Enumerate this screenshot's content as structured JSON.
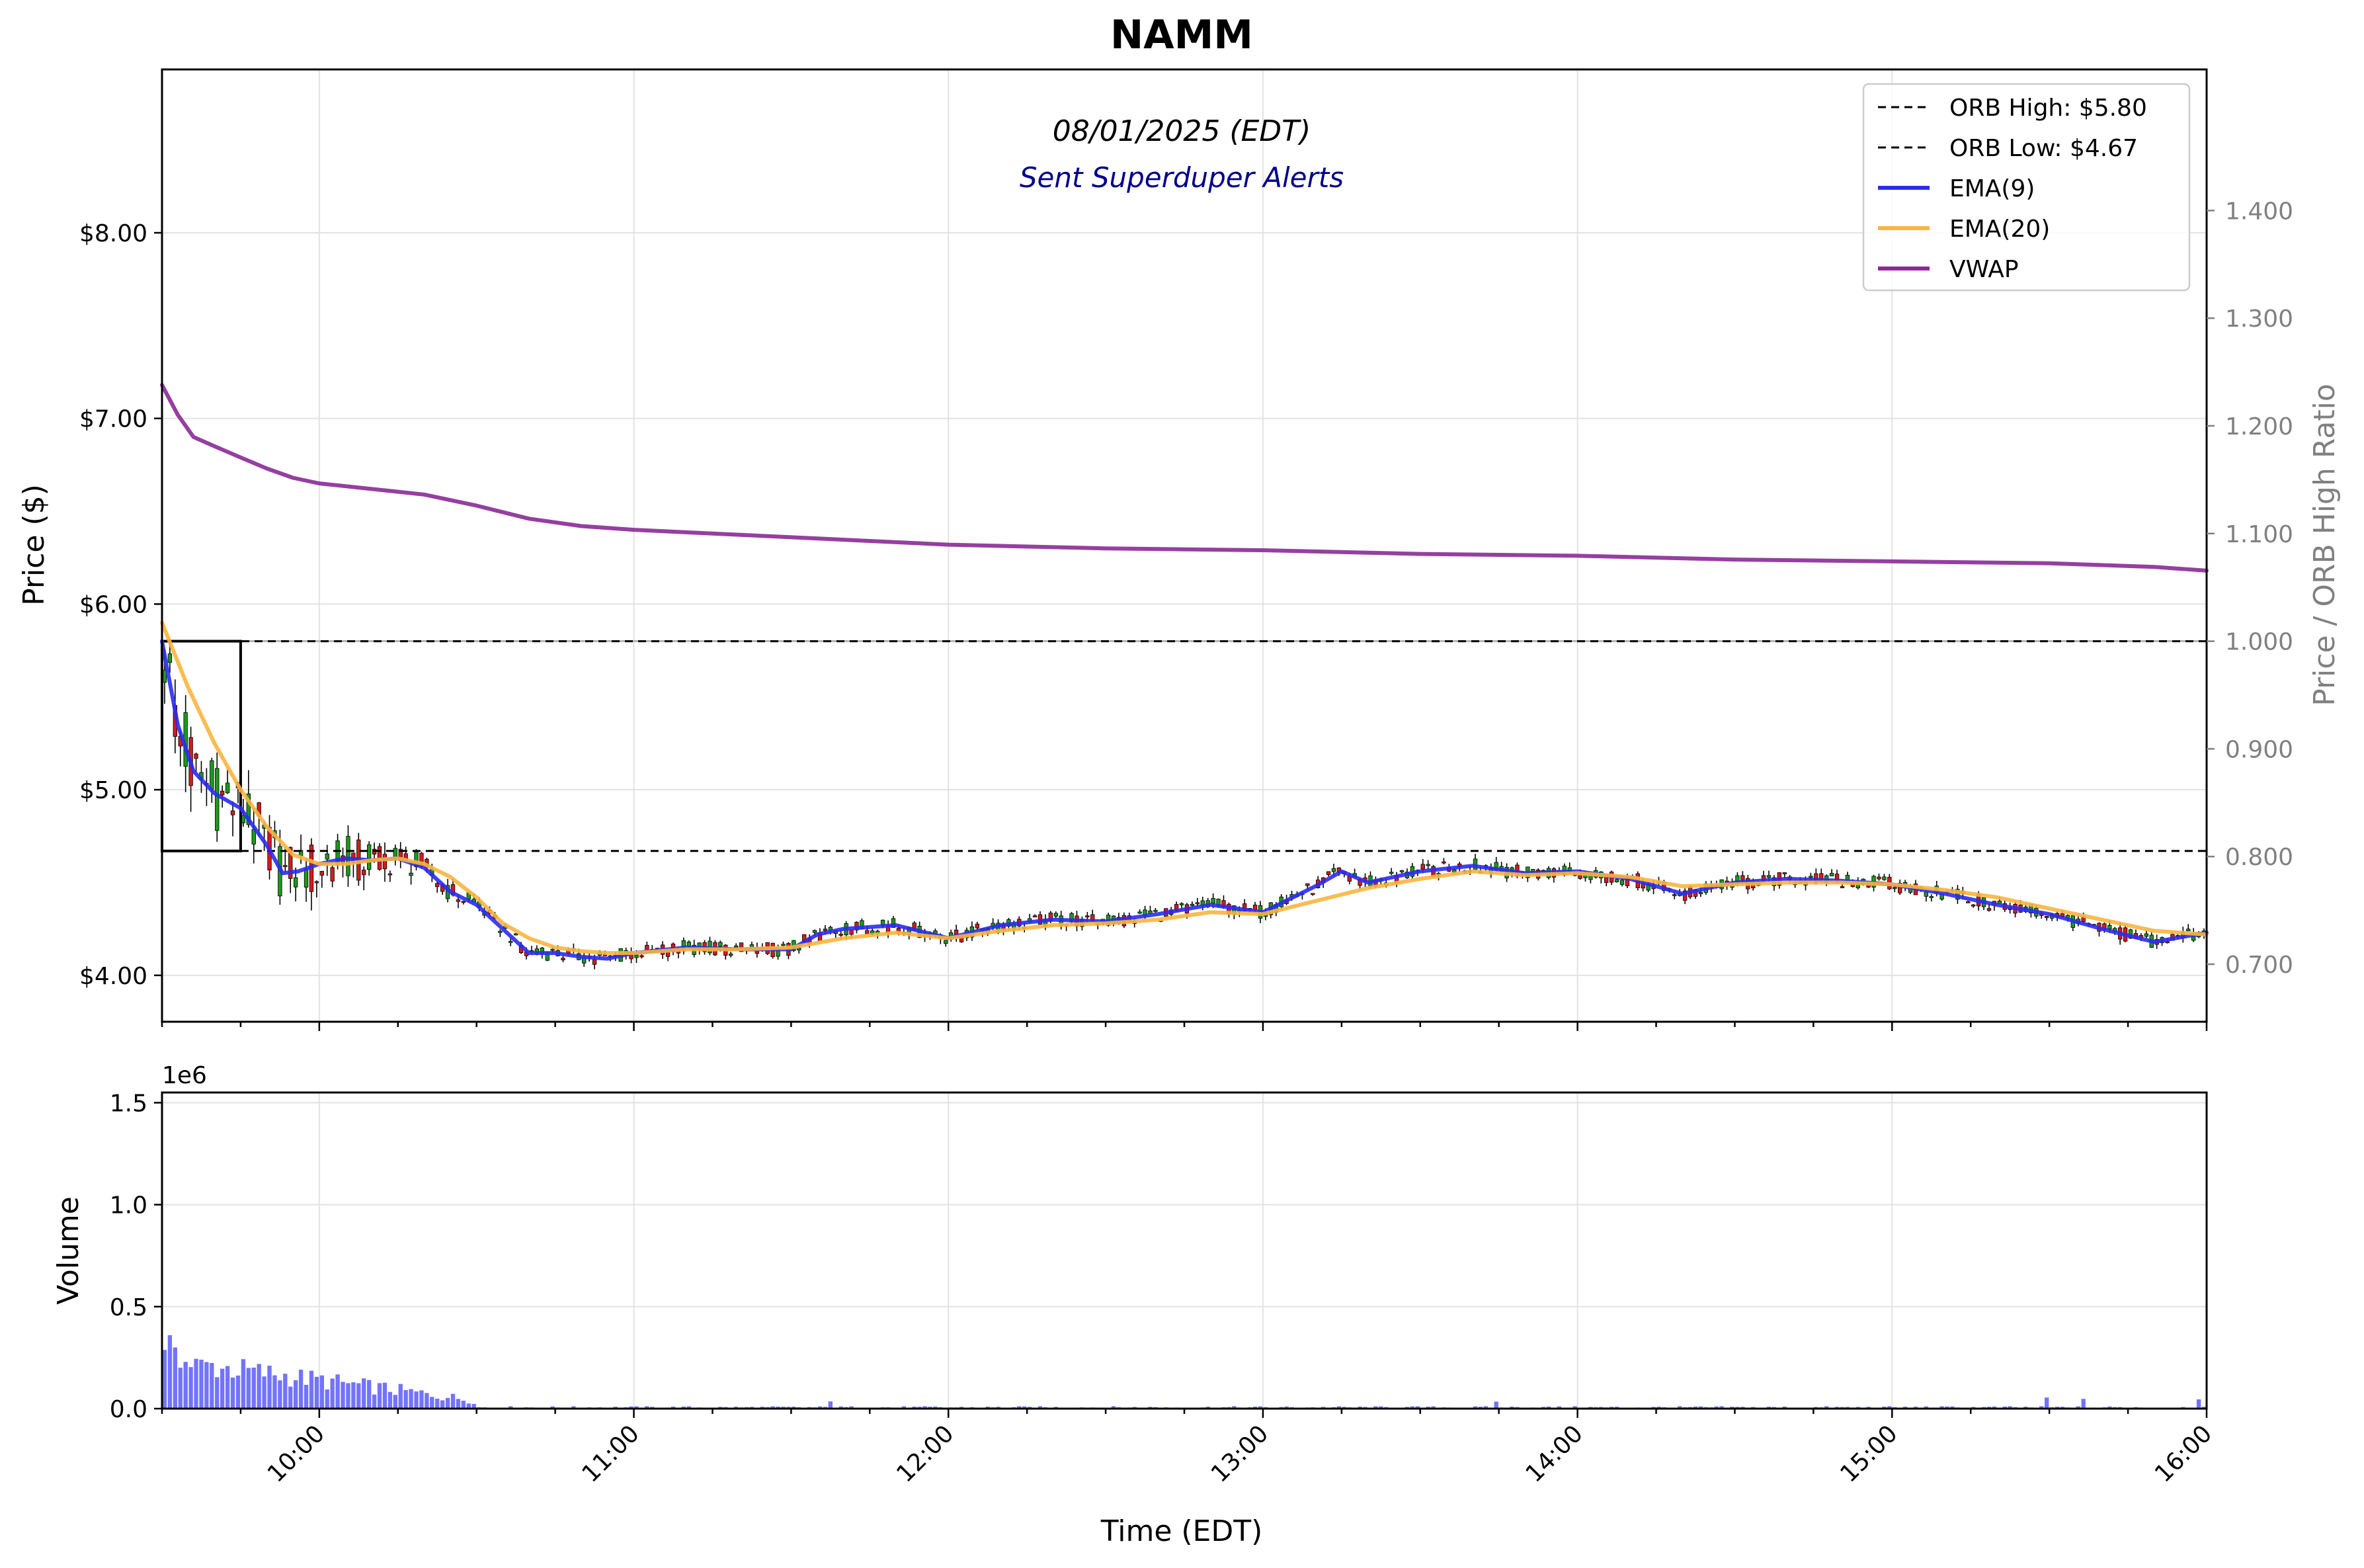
{
  "chart_data": {
    "type": "line",
    "title": "NAMM",
    "subtitle": "08/01/2025 (EDT)",
    "annotation": "Sent Superduper Alerts",
    "price_panel": {
      "ylabel": "Price ($)",
      "ylim": [
        3.75,
        8.88
      ],
      "yticks": [
        4.0,
        5.0,
        6.0,
        7.0,
        8.0
      ],
      "ytick_labels": [
        "$4.00",
        "$5.00",
        "$6.00",
        "$7.00",
        "$8.00"
      ],
      "secondary_ylabel": "Price / ORB High Ratio",
      "secondary_yticks": [
        0.7,
        0.8,
        0.9,
        1.0,
        1.1,
        1.2,
        1.3,
        1.4
      ],
      "secondary_ytick_labels": [
        "0.700",
        "0.800",
        "0.900",
        "1.000",
        "1.100",
        "1.200",
        "1.300",
        "1.400"
      ],
      "grid": true,
      "legend_position": "top-right",
      "orb_high": 5.8,
      "orb_low": 4.67,
      "orb_box": {
        "x_start": "09:30",
        "x_end": "09:45"
      },
      "series": [
        {
          "name": "ORB High: $5.80",
          "style": "dashed",
          "color": "#000000",
          "x": [
            "09:30",
            "16:00"
          ],
          "y": [
            5.8,
            5.8
          ]
        },
        {
          "name": "ORB Low: $4.67",
          "style": "dashed",
          "color": "#000000",
          "x": [
            "09:45",
            "16:00"
          ],
          "y": [
            4.67,
            4.67
          ]
        },
        {
          "name": "EMA(9)",
          "style": "solid",
          "color": "#2b2bf0",
          "x": [
            "09:30",
            "09:33",
            "09:36",
            "09:40",
            "09:45",
            "09:50",
            "09:53",
            "09:56",
            "10:00",
            "10:05",
            "10:10",
            "10:15",
            "10:20",
            "10:25",
            "10:30",
            "10:35",
            "10:40",
            "10:45",
            "10:50",
            "10:55",
            "11:00",
            "11:10",
            "11:20",
            "11:30",
            "11:35",
            "11:40",
            "11:50",
            "12:00",
            "12:10",
            "12:20",
            "12:30",
            "12:40",
            "12:50",
            "13:00",
            "13:10",
            "13:15",
            "13:20",
            "13:30",
            "13:40",
            "13:50",
            "14:00",
            "14:10",
            "14:20",
            "14:30",
            "14:40",
            "14:50",
            "15:00",
            "15:10",
            "15:20",
            "15:30",
            "15:40",
            "15:50",
            "16:00"
          ],
          "y": [
            5.8,
            5.35,
            5.1,
            4.98,
            4.9,
            4.7,
            4.55,
            4.56,
            4.6,
            4.63,
            4.62,
            4.63,
            4.58,
            4.45,
            4.38,
            4.25,
            4.12,
            4.12,
            4.1,
            4.09,
            4.12,
            4.15,
            4.14,
            4.14,
            4.22,
            4.25,
            4.27,
            4.2,
            4.27,
            4.3,
            4.29,
            4.33,
            4.38,
            4.34,
            4.48,
            4.56,
            4.5,
            4.56,
            4.59,
            4.55,
            4.56,
            4.52,
            4.44,
            4.5,
            4.52,
            4.51,
            4.49,
            4.44,
            4.38,
            4.33,
            4.25,
            4.18,
            4.23
          ]
        },
        {
          "name": "EMA(20)",
          "style": "solid",
          "color": "#f9b540",
          "x": [
            "09:30",
            "09:35",
            "09:40",
            "09:45",
            "09:50",
            "09:55",
            "10:00",
            "10:05",
            "10:10",
            "10:15",
            "10:20",
            "10:25",
            "10:30",
            "10:35",
            "10:40",
            "10:45",
            "10:50",
            "10:55",
            "11:00",
            "11:10",
            "11:20",
            "11:30",
            "11:40",
            "11:50",
            "12:00",
            "12:10",
            "12:20",
            "12:30",
            "12:40",
            "12:50",
            "13:00",
            "13:10",
            "13:20",
            "13:30",
            "13:40",
            "13:50",
            "14:00",
            "14:10",
            "14:20",
            "14:30",
            "14:40",
            "14:50",
            "15:00",
            "15:10",
            "15:20",
            "15:30",
            "15:40",
            "15:50",
            "16:00"
          ],
          "y": [
            5.9,
            5.55,
            5.25,
            5.0,
            4.8,
            4.65,
            4.6,
            4.6,
            4.62,
            4.63,
            4.6,
            4.53,
            4.42,
            4.28,
            4.2,
            4.15,
            4.13,
            4.12,
            4.12,
            4.14,
            4.14,
            4.15,
            4.2,
            4.23,
            4.2,
            4.24,
            4.27,
            4.28,
            4.3,
            4.34,
            4.33,
            4.4,
            4.47,
            4.52,
            4.56,
            4.54,
            4.55,
            4.53,
            4.48,
            4.49,
            4.5,
            4.5,
            4.49,
            4.46,
            4.42,
            4.36,
            4.3,
            4.24,
            4.22
          ]
        },
        {
          "name": "VWAP",
          "style": "solid",
          "color": "#8a2a96",
          "x": [
            "09:30",
            "09:33",
            "09:36",
            "09:40",
            "09:45",
            "09:50",
            "09:55",
            "10:00",
            "10:10",
            "10:20",
            "10:30",
            "10:40",
            "10:50",
            "11:00",
            "11:15",
            "11:30",
            "11:45",
            "12:00",
            "12:30",
            "13:00",
            "13:30",
            "14:00",
            "14:30",
            "15:00",
            "15:30",
            "15:50",
            "16:00"
          ],
          "y": [
            7.18,
            7.02,
            6.9,
            6.85,
            6.79,
            6.73,
            6.68,
            6.65,
            6.62,
            6.59,
            6.53,
            6.46,
            6.42,
            6.4,
            6.38,
            6.36,
            6.34,
            6.32,
            6.3,
            6.29,
            6.27,
            6.26,
            6.24,
            6.23,
            6.22,
            6.2,
            6.18
          ]
        }
      ]
    },
    "volume_panel": {
      "ylabel": "Volume",
      "scale_label": "1e6",
      "ylim": [
        0,
        1.55
      ],
      "yticks": [
        0.0,
        0.5,
        1.0,
        1.5
      ],
      "ytick_labels": [
        "0.0",
        "0.5",
        "1.0",
        "1.5"
      ],
      "grid": true,
      "color": "#5b5bff",
      "unit": "millions"
    },
    "x_axis": {
      "xlabel": "Time (EDT)",
      "xlim": [
        "09:30",
        "16:00"
      ],
      "ticks": [
        "10:00",
        "11:00",
        "12:00",
        "13:00",
        "14:00",
        "15:00",
        "16:00"
      ]
    },
    "candles_note": "1-minute candlesticks, green = up, red = down"
  }
}
